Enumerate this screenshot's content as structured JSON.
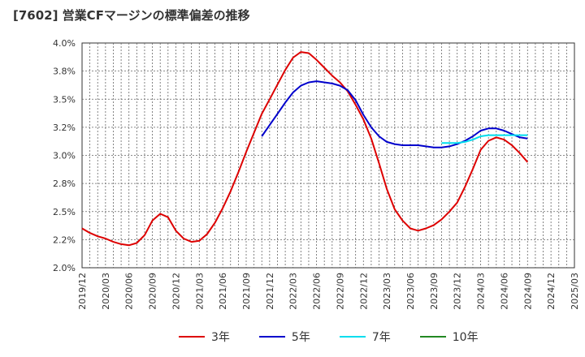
{
  "chart_data": {
    "type": "line",
    "title": "[7602]  営業CFマージンの標準偏差の推移",
    "ylim": [
      2.0,
      4.0
    ],
    "y_ticks": [
      "4.0%",
      "3.8%",
      "3.5%",
      "3.2%",
      "3.0%",
      "2.8%",
      "2.5%",
      "2.2%",
      "2.0%"
    ],
    "x_ticks": [
      "2019/12",
      "2020/03",
      "2020/06",
      "2020/09",
      "2020/12",
      "2021/03",
      "2021/06",
      "2021/09",
      "2021/12",
      "2022/03",
      "2022/06",
      "2022/09",
      "2022/12",
      "2023/03",
      "2023/06",
      "2023/09",
      "2023/12",
      "2024/03",
      "2024/06",
      "2024/09",
      "2024/12",
      "2025/03"
    ],
    "grid": true,
    "legend_position": "bottom",
    "series": [
      {
        "name": "3年",
        "color": "#dd0000",
        "points": [
          [
            "2019/12",
            2.35
          ],
          [
            "2020/01",
            2.31
          ],
          [
            "2020/02",
            2.28
          ],
          [
            "2020/03",
            2.26
          ],
          [
            "2020/04",
            2.23
          ],
          [
            "2020/05",
            2.21
          ],
          [
            "2020/06",
            2.2
          ],
          [
            "2020/07",
            2.22
          ],
          [
            "2020/08",
            2.29
          ],
          [
            "2020/09",
            2.42
          ],
          [
            "2020/10",
            2.48
          ],
          [
            "2020/11",
            2.45
          ],
          [
            "2020/12",
            2.33
          ],
          [
            "2021/01",
            2.26
          ],
          [
            "2021/02",
            2.23
          ],
          [
            "2021/03",
            2.24
          ],
          [
            "2021/04",
            2.3
          ],
          [
            "2021/05",
            2.4
          ],
          [
            "2021/06",
            2.53
          ],
          [
            "2021/07",
            2.68
          ],
          [
            "2021/08",
            2.85
          ],
          [
            "2021/09",
            3.03
          ],
          [
            "2021/10",
            3.2
          ],
          [
            "2021/11",
            3.37
          ],
          [
            "2021/12",
            3.5
          ],
          [
            "2022/01",
            3.63
          ],
          [
            "2022/02",
            3.76
          ],
          [
            "2022/03",
            3.87
          ],
          [
            "2022/04",
            3.92
          ],
          [
            "2022/05",
            3.91
          ],
          [
            "2022/06",
            3.85
          ],
          [
            "2022/07",
            3.78
          ],
          [
            "2022/08",
            3.71
          ],
          [
            "2022/09",
            3.65
          ],
          [
            "2022/10",
            3.57
          ],
          [
            "2022/11",
            3.45
          ],
          [
            "2022/12",
            3.32
          ],
          [
            "2023/01",
            3.15
          ],
          [
            "2023/02",
            2.93
          ],
          [
            "2023/03",
            2.7
          ],
          [
            "2023/04",
            2.52
          ],
          [
            "2023/05",
            2.42
          ],
          [
            "2023/06",
            2.35
          ],
          [
            "2023/07",
            2.33
          ],
          [
            "2023/08",
            2.35
          ],
          [
            "2023/09",
            2.38
          ],
          [
            "2023/10",
            2.43
          ],
          [
            "2023/11",
            2.5
          ],
          [
            "2023/12",
            2.58
          ],
          [
            "2024/01",
            2.72
          ],
          [
            "2024/02",
            2.88
          ],
          [
            "2024/03",
            3.05
          ],
          [
            "2024/04",
            3.13
          ],
          [
            "2024/05",
            3.16
          ],
          [
            "2024/06",
            3.14
          ],
          [
            "2024/07",
            3.09
          ],
          [
            "2024/08",
            3.02
          ],
          [
            "2024/09",
            2.94
          ]
        ]
      },
      {
        "name": "5年",
        "color": "#0000cc",
        "points": [
          [
            "2021/11",
            3.17
          ],
          [
            "2021/12",
            3.27
          ],
          [
            "2022/01",
            3.37
          ],
          [
            "2022/02",
            3.47
          ],
          [
            "2022/03",
            3.56
          ],
          [
            "2022/04",
            3.62
          ],
          [
            "2022/05",
            3.65
          ],
          [
            "2022/06",
            3.66
          ],
          [
            "2022/07",
            3.65
          ],
          [
            "2022/08",
            3.64
          ],
          [
            "2022/09",
            3.62
          ],
          [
            "2022/10",
            3.58
          ],
          [
            "2022/11",
            3.49
          ],
          [
            "2022/12",
            3.36
          ],
          [
            "2023/01",
            3.25
          ],
          [
            "2023/02",
            3.17
          ],
          [
            "2023/03",
            3.12
          ],
          [
            "2023/04",
            3.1
          ],
          [
            "2023/05",
            3.09
          ],
          [
            "2023/06",
            3.09
          ],
          [
            "2023/07",
            3.09
          ],
          [
            "2023/08",
            3.08
          ],
          [
            "2023/09",
            3.07
          ],
          [
            "2023/10",
            3.07
          ],
          [
            "2023/11",
            3.08
          ],
          [
            "2023/12",
            3.1
          ],
          [
            "2024/01",
            3.13
          ],
          [
            "2024/02",
            3.17
          ],
          [
            "2024/03",
            3.22
          ],
          [
            "2024/04",
            3.24
          ],
          [
            "2024/05",
            3.24
          ],
          [
            "2024/06",
            3.22
          ],
          [
            "2024/07",
            3.19
          ],
          [
            "2024/08",
            3.16
          ],
          [
            "2024/09",
            3.15
          ]
        ]
      },
      {
        "name": "7年",
        "color": "#00ddee",
        "points": [
          [
            "2023/10",
            3.11
          ],
          [
            "2023/11",
            3.11
          ],
          [
            "2023/12",
            3.11
          ],
          [
            "2024/01",
            3.12
          ],
          [
            "2024/02",
            3.14
          ],
          [
            "2024/03",
            3.17
          ],
          [
            "2024/04",
            3.18
          ],
          [
            "2024/05",
            3.18
          ],
          [
            "2024/06",
            3.18
          ],
          [
            "2024/07",
            3.18
          ],
          [
            "2024/08",
            3.18
          ],
          [
            "2024/09",
            3.18
          ]
        ]
      },
      {
        "name": "10年",
        "color": "#228822",
        "points": []
      }
    ]
  }
}
